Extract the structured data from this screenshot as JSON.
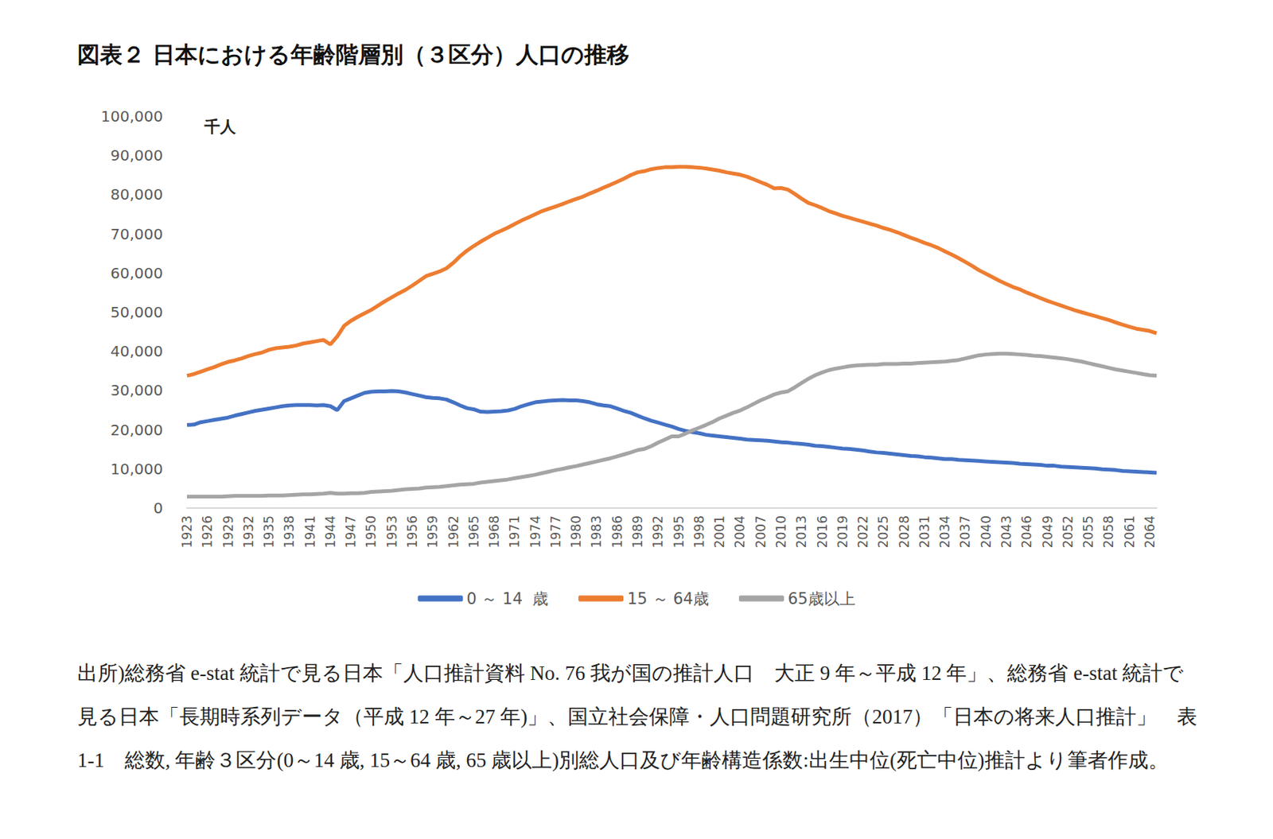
{
  "chart_data": {
    "type": "line",
    "title": "図表２ 日本における年齢階層別（３区分）人口の推移",
    "ylabel": "千人",
    "source": "出所)総務省 e-stat 統計で見る日本「人口推計資料 No. 76 我が国の推計人口　大正 9 年～平成 12 年」、総務省 e-stat 統計で見る日本「長期時系列データ（平成 12 年～27 年)」、国立社会保障・人口問題研究所（2017）「日本の将来人口推計」　表 1-1　総数, 年齢３区分(0～14 歳, 15～64 歳, 65 歳以上)別総人口及び年齢構造係数:出生中位(死亡中位)推計より筆者作成。",
    "categories": [
      "1923",
      null,
      null,
      "1926",
      null,
      null,
      "1929",
      null,
      null,
      "1932",
      null,
      null,
      "1935",
      null,
      null,
      "1938",
      null,
      null,
      "1941",
      null,
      null,
      "1944",
      null,
      null,
      "1947",
      null,
      null,
      "1950",
      null,
      null,
      "1953",
      null,
      null,
      "1956",
      null,
      null,
      "1959",
      null,
      null,
      "1962",
      null,
      null,
      "1965",
      null,
      null,
      "1968",
      null,
      null,
      "1971",
      null,
      null,
      "1974",
      null,
      null,
      "1977",
      null,
      null,
      "1980",
      null,
      null,
      "1983",
      null,
      null,
      "1986",
      null,
      null,
      "1989",
      null,
      null,
      "1992",
      null,
      null,
      "1995",
      null,
      null,
      "1998",
      null,
      null,
      "2001",
      null,
      null,
      "2004",
      null,
      null,
      "2007",
      null,
      null,
      "2010",
      null,
      null,
      "2013",
      null,
      null,
      "2016",
      null,
      null,
      "2019",
      null,
      null,
      "2022",
      null,
      null,
      "2025",
      null,
      null,
      "2028",
      null,
      null,
      "2031",
      null,
      null,
      "2034",
      null,
      null,
      "2037",
      null,
      null,
      "2040",
      null,
      null,
      "2043",
      null,
      null,
      "2046",
      null,
      null,
      "2049",
      null,
      null,
      "2052",
      null,
      null,
      "2055",
      null,
      null,
      "2058",
      null,
      null,
      "2061",
      null,
      null,
      "2064",
      null
    ],
    "series": [
      {
        "name": "0 ～ 14  歳",
        "color": "#4472c4",
        "values": [
          21200,
          21300,
          21900,
          22200,
          22500,
          22800,
          23100,
          23600,
          24000,
          24400,
          24800,
          25100,
          25400,
          25700,
          26000,
          26200,
          26300,
          26300,
          26300,
          26200,
          26300,
          26000,
          25000,
          27300,
          28000,
          28700,
          29400,
          29700,
          29800,
          29800,
          29900,
          29800,
          29500,
          29100,
          28700,
          28300,
          28100,
          28000,
          27700,
          27000,
          26200,
          25500,
          25200,
          24600,
          24500,
          24600,
          24700,
          24900,
          25300,
          26000,
          26500,
          27000,
          27200,
          27400,
          27500,
          27600,
          27500,
          27500,
          27300,
          27000,
          26500,
          26200,
          26000,
          25400,
          24800,
          24300,
          23600,
          22900,
          22300,
          21800,
          21300,
          20800,
          20200,
          19700,
          19400,
          19100,
          18700,
          18500,
          18300,
          18100,
          17900,
          17700,
          17500,
          17400,
          17300,
          17200,
          17000,
          16800,
          16700,
          16500,
          16400,
          16200,
          15900,
          15800,
          15600,
          15400,
          15200,
          15100,
          14900,
          14700,
          14400,
          14200,
          14100,
          13900,
          13700,
          13500,
          13300,
          13200,
          13000,
          12900,
          12700,
          12500,
          12500,
          12300,
          12200,
          12100,
          12000,
          11900,
          11800,
          11700,
          11600,
          11500,
          11300,
          11200,
          11100,
          11000,
          10800,
          10800,
          10600,
          10500,
          10400,
          10300,
          10200,
          10100,
          9900,
          9800,
          9700,
          9500,
          9400,
          9300,
          9200,
          9100,
          9000
        ]
      },
      {
        "name": "15 ～ 64歳",
        "color": "#ed7d31",
        "values": [
          33800,
          34200,
          34800,
          35400,
          36000,
          36700,
          37300,
          37700,
          38200,
          38800,
          39300,
          39700,
          40400,
          40800,
          41000,
          41200,
          41500,
          42000,
          42300,
          42600,
          42900,
          41800,
          43800,
          46500,
          47800,
          48800,
          49700,
          50600,
          51700,
          52800,
          53800,
          54800,
          55700,
          56800,
          58000,
          59200,
          59800,
          60400,
          61200,
          62600,
          64300,
          65700,
          66900,
          68000,
          69000,
          70000,
          70800,
          71600,
          72500,
          73400,
          74200,
          75000,
          75800,
          76400,
          77000,
          77600,
          78300,
          78900,
          79500,
          80300,
          81000,
          81800,
          82500,
          83300,
          84100,
          85000,
          85700,
          86000,
          86500,
          86800,
          87000,
          87000,
          87100,
          87100,
          87000,
          86900,
          86700,
          86400,
          86100,
          85700,
          85400,
          85100,
          84600,
          83900,
          83200,
          82500,
          81600,
          81700,
          81300,
          80200,
          79000,
          77900,
          77300,
          76600,
          75800,
          75200,
          74600,
          74100,
          73600,
          73100,
          72600,
          72100,
          71500,
          71000,
          70400,
          69700,
          69000,
          68400,
          67700,
          67100,
          66400,
          65500,
          64700,
          63800,
          62800,
          61800,
          60700,
          59800,
          58900,
          58000,
          57200,
          56400,
          55800,
          55000,
          54300,
          53600,
          52900,
          52300,
          51700,
          51100,
          50500,
          50000,
          49500,
          49000,
          48500,
          48000,
          47400,
          46800,
          46300,
          45800,
          45500,
          45200,
          44600
        ]
      },
      {
        "name": "65歳以上",
        "color": "#a5a5a5",
        "values": [
          2900,
          2900,
          2900,
          2900,
          2900,
          2900,
          3000,
          3100,
          3100,
          3100,
          3100,
          3100,
          3200,
          3200,
          3200,
          3300,
          3400,
          3500,
          3500,
          3600,
          3700,
          3900,
          3700,
          3700,
          3800,
          3800,
          3900,
          4100,
          4200,
          4300,
          4400,
          4600,
          4800,
          4900,
          5000,
          5200,
          5300,
          5400,
          5600,
          5800,
          6000,
          6100,
          6200,
          6500,
          6700,
          6900,
          7100,
          7300,
          7600,
          7900,
          8200,
          8500,
          8900,
          9300,
          9700,
          10000,
          10400,
          10700,
          11100,
          11500,
          11900,
          12300,
          12700,
          13200,
          13700,
          14200,
          14800,
          15100,
          15800,
          16700,
          17500,
          18300,
          18300,
          19000,
          19800,
          20500,
          21200,
          22000,
          22900,
          23600,
          24300,
          24900,
          25700,
          26600,
          27500,
          28200,
          29000,
          29500,
          29800,
          30800,
          31900,
          33000,
          33900,
          34600,
          35200,
          35600,
          35900,
          36200,
          36400,
          36500,
          36600,
          36600,
          36800,
          36800,
          36800,
          36900,
          36900,
          37000,
          37100,
          37200,
          37300,
          37400,
          37600,
          37800,
          38200,
          38600,
          39000,
          39200,
          39300,
          39400,
          39400,
          39300,
          39200,
          39100,
          38900,
          38800,
          38600,
          38400,
          38200,
          38000,
          37700,
          37400,
          37000,
          36600,
          36200,
          35800,
          35400,
          35100,
          34800,
          34500,
          34200,
          33900,
          33800
        ]
      }
    ],
    "ylim": [
      0,
      100000
    ],
    "yticks": [
      0,
      {
        "value": 10000,
        "label": "10,000"
      },
      {
        "value": 20000,
        "label": "20,000"
      },
      {
        "value": 30000,
        "label": "30,000"
      },
      {
        "value": 40000,
        "label": "40,000"
      },
      {
        "value": 50000,
        "label": "50,000"
      },
      {
        "value": 60000,
        "label": "60,000"
      },
      {
        "value": 70000,
        "label": "70,000"
      },
      {
        "value": 80000,
        "label": "80,000"
      },
      {
        "value": 90000,
        "label": "90,000"
      },
      {
        "value": 100000,
        "label": "100,000"
      }
    ],
    "grid": false,
    "legend": "bottom"
  }
}
